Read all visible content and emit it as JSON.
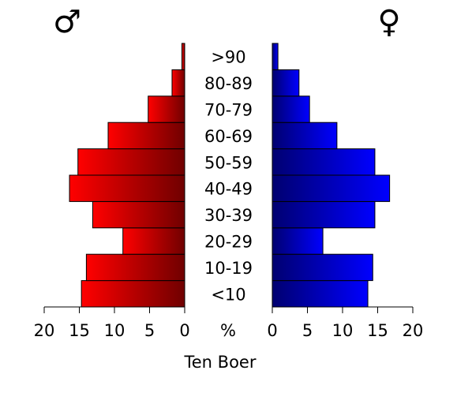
{
  "chart_data": {
    "type": "pyramid",
    "title": "Ten Boer",
    "x_label": "%",
    "categories": [
      "<10",
      "10-19",
      "20-29",
      "30-39",
      "40-49",
      "50-59",
      "60-69",
      "70-79",
      "80-89",
      ">90"
    ],
    "series": [
      {
        "name": "♂",
        "color": "#ff0000",
        "values": [
          14.7,
          14.0,
          8.8,
          13.1,
          16.4,
          15.2,
          10.9,
          5.2,
          1.8,
          0.4
        ]
      },
      {
        "name": "♀",
        "color": "#0000ff",
        "values": [
          13.6,
          14.3,
          7.2,
          14.6,
          16.7,
          14.6,
          9.2,
          5.3,
          3.8,
          0.8
        ]
      }
    ],
    "xlim": [
      0,
      20
    ],
    "xticks": [
      0,
      5,
      10,
      15,
      20
    ]
  }
}
